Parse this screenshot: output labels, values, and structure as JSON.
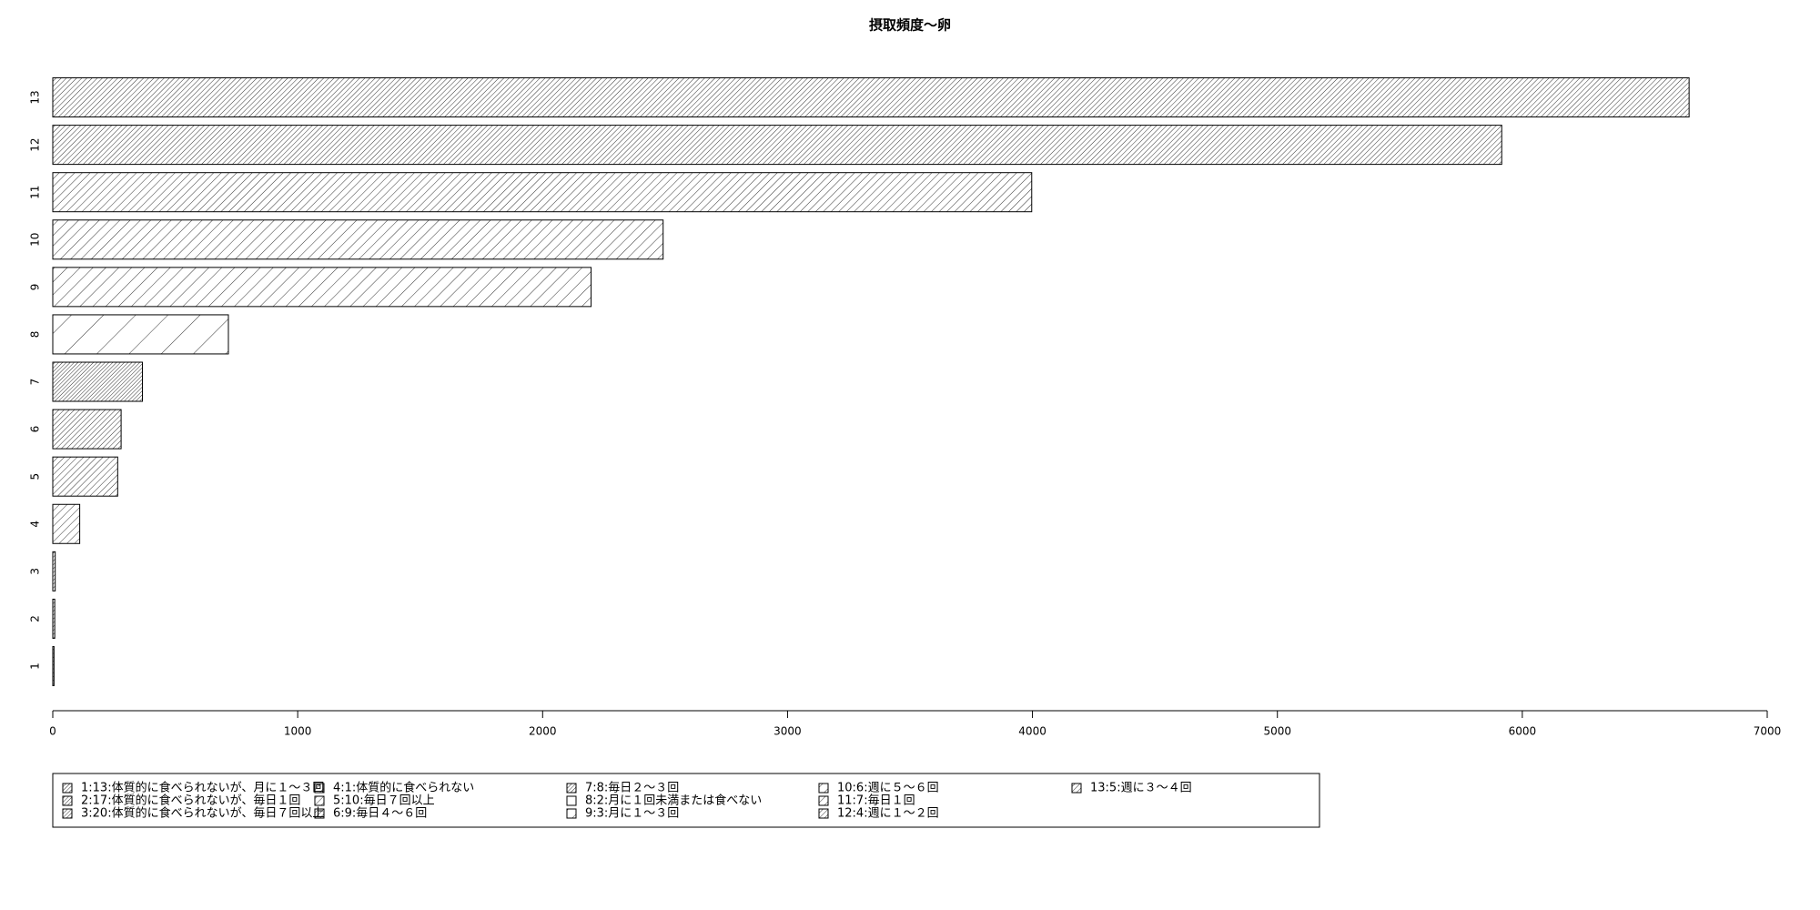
{
  "chart_data": {
    "type": "barh",
    "title": "摂取頻度〜卵",
    "categories": [
      "1",
      "2",
      "3",
      "4",
      "5",
      "6",
      "7",
      "8",
      "9",
      "10",
      "11",
      "12",
      "13"
    ],
    "values": [
      5,
      8,
      10,
      110,
      265,
      279,
      366,
      717,
      2198,
      2492,
      3997,
      5916,
      6681
    ],
    "xlim": [
      0,
      7000
    ],
    "xticks": [
      0,
      1000,
      2000,
      3000,
      4000,
      5000,
      6000,
      7000
    ],
    "legend": [
      "1:13:体質的に食べられないが、月に１〜３回",
      "2:17:体質的に食べられないが、毎日１回",
      "3:20:体質的に食べられないが、毎日７回以上",
      "4:1:体質的に食べられない",
      "5:10:毎日７回以上",
      "6:9:毎日４〜６回",
      "7:8:毎日２〜３回",
      "8:2:月に１回未満または食べない",
      "9:3:月に１〜３回",
      "10:6:週に５〜６回",
      "11:7:毎日１回",
      "12:4:週に１〜２回",
      "13:5:週に３〜４回"
    ]
  }
}
